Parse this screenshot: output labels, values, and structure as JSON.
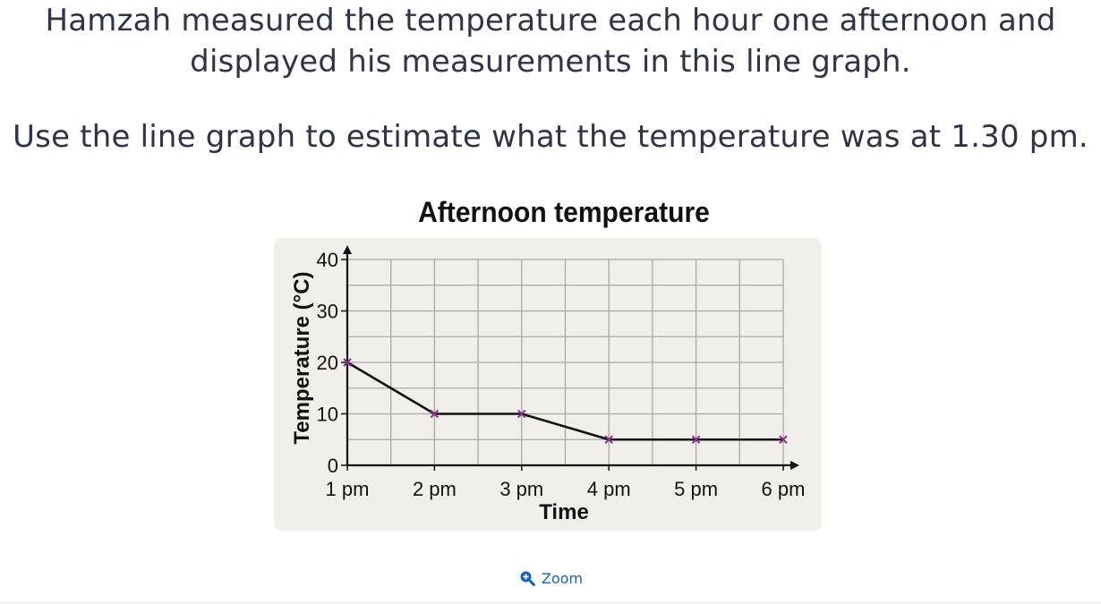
{
  "question": {
    "line1": "Hamzah measured the temperature each hour one afternoon and displayed his measurements in this line graph.",
    "line2": "Use the line graph to estimate what the temperature was at 1.30 pm."
  },
  "zoom": {
    "label": "Zoom",
    "icon": "zoom-in-icon"
  },
  "colors": {
    "panel": "#f1efea",
    "grid": "#a8a8a8",
    "line": "#111111",
    "marker": "#8b2f8f",
    "link": "#1565c0"
  },
  "chart_data": {
    "type": "line",
    "title": "Afternoon temperature",
    "xlabel": "Time",
    "ylabel": "Temperature (°C)",
    "categories": [
      "1 pm",
      "2 pm",
      "3 pm",
      "4 pm",
      "5 pm",
      "6 pm"
    ],
    "values": [
      20,
      10,
      10,
      5,
      5,
      5
    ],
    "ylim": [
      0,
      40
    ],
    "yticks": [
      0,
      10,
      20,
      30,
      40
    ],
    "minor_grid_step": 5,
    "grid": true,
    "marker": "x"
  }
}
